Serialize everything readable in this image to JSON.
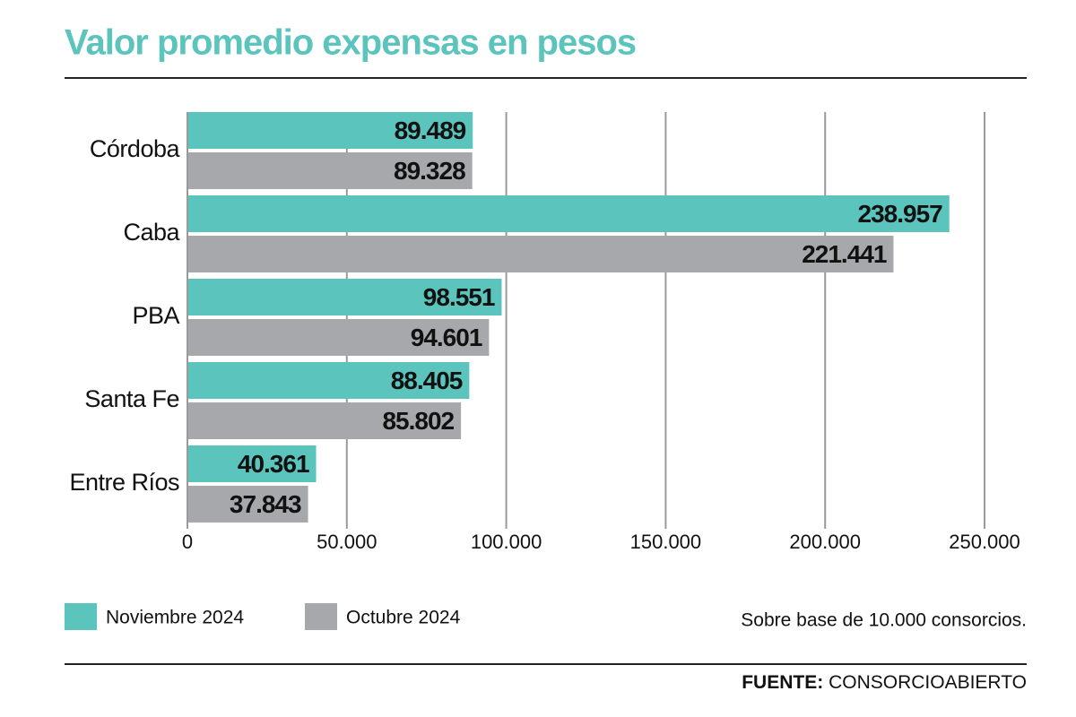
{
  "chart_data": {
    "type": "hbar",
    "title": "Valor promedio expensas en pesos",
    "categories": [
      "Córdoba",
      "Caba",
      "PBA",
      "Santa Fe",
      "Entre Ríos"
    ],
    "series": [
      {
        "name": "Noviembre 2024",
        "color": "#5bc4bc",
        "values": [
          89489,
          238957,
          98551,
          88405,
          40361
        ],
        "value_labels": [
          "89.489",
          "238.957",
          "98.551",
          "88.405",
          "40.361"
        ]
      },
      {
        "name": "Octubre 2024",
        "color": "#a7a8ab",
        "values": [
          89328,
          221441,
          94601,
          85802,
          37843
        ],
        "value_labels": [
          "89.328",
          "221.441",
          "94.601",
          "85.802",
          "37.843"
        ]
      }
    ],
    "xlim": [
      0,
      250000
    ],
    "xticks": [
      0,
      {
        "value": 50000,
        "label": "50.000"
      },
      {
        "value": 100000,
        "label": "100.000"
      },
      {
        "value": 150000,
        "label": "150.000"
      },
      {
        "value": 200000,
        "label": "200.000"
      },
      {
        "value": 250000,
        "label": "250.000"
      }
    ],
    "grid": true,
    "legend": "bottom-left",
    "note": "Sobre base de 10.000 consorcios.",
    "source_label": "FUENTE:",
    "source": "CONSORCIOABIERTO"
  }
}
